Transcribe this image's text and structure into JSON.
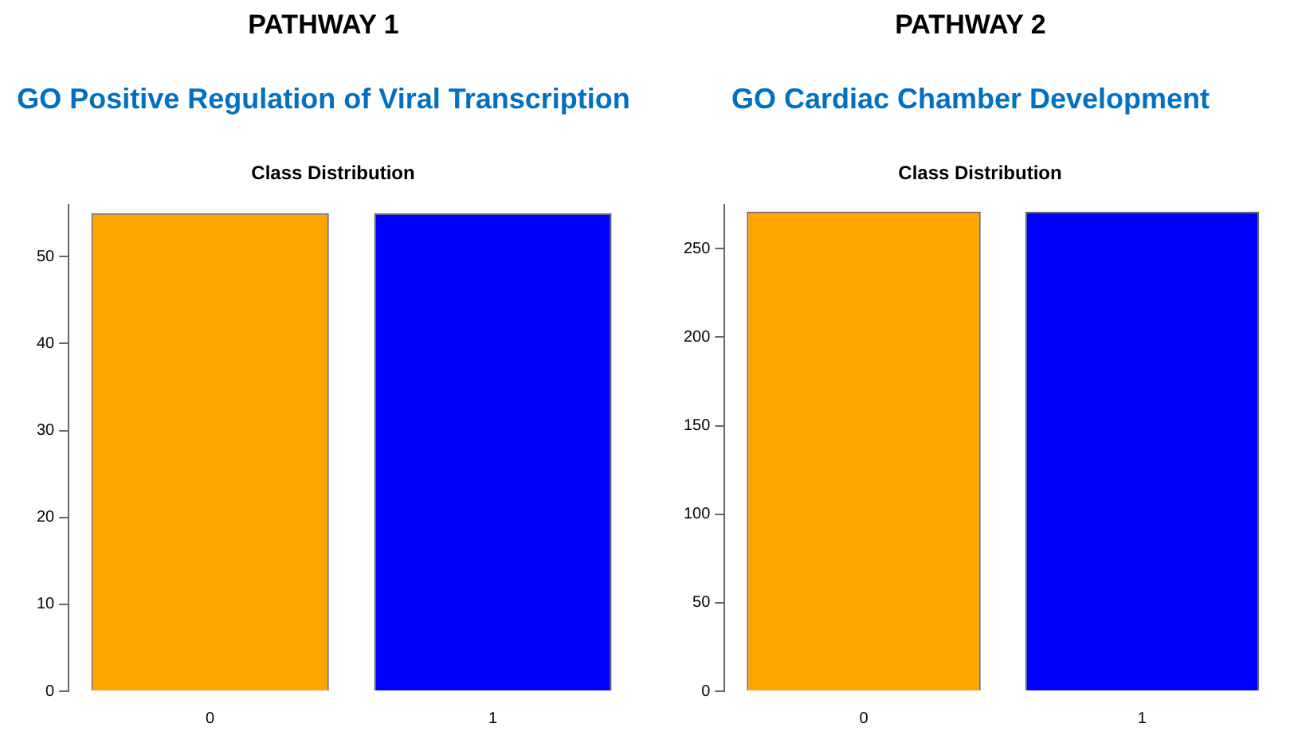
{
  "chart_data": [
    {
      "type": "bar",
      "title": "PATHWAY 1",
      "subtitle": "GO Positive Regulation of Viral Transcription",
      "annotations": [
        "Class Distribution"
      ],
      "categories": [
        "0",
        "1"
      ],
      "values": [
        55,
        55
      ],
      "colors": [
        "#ffa500",
        "#0000ff"
      ],
      "ylim": [
        0,
        56
      ],
      "yticks": [
        0,
        10,
        20,
        30,
        40,
        50
      ],
      "grid": false,
      "legend": false
    },
    {
      "type": "bar",
      "title": "PATHWAY 2",
      "subtitle": "GO Cardiac Chamber Development",
      "annotations": [
        "Class Distribution"
      ],
      "categories": [
        "0",
        "1"
      ],
      "values": [
        271,
        271
      ],
      "colors": [
        "#ffa500",
        "#0000ff"
      ],
      "ylim": [
        0,
        275
      ],
      "yticks": [
        0,
        50,
        100,
        150,
        200,
        250
      ],
      "grid": false,
      "legend": false
    }
  ]
}
